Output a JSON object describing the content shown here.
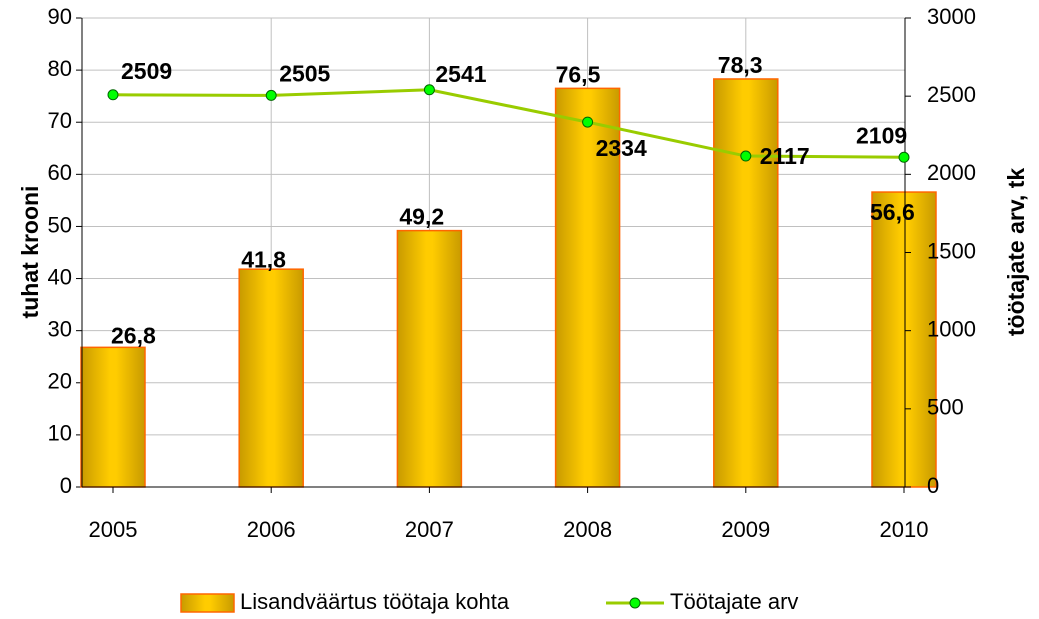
{
  "chart_data": {
    "type": "bar-line",
    "categories": [
      "2005",
      "2006",
      "2007",
      "2008",
      "2009",
      "2010"
    ],
    "y_label": "tuhat krooni",
    "y2_label": "töötajate arv, tk",
    "series": [
      {
        "name": "Lisandväärtus töötaja kohta",
        "type": "bar",
        "color": "#ffc000",
        "values": [
          26.8,
          41.8,
          49.2,
          76.5,
          78.3,
          56.6
        ],
        "value_labels": [
          "26,8",
          "41,8",
          "49,2",
          "76,5",
          "78,3",
          "56,6"
        ]
      },
      {
        "name": "Töötajate arv",
        "type": "line",
        "axis": "y2",
        "color": "#99cc00",
        "values": [
          2509,
          2505,
          2541,
          2334,
          2117,
          2109
        ]
      }
    ],
    "ylim": [
      0,
      90
    ],
    "yticks": [
      0,
      10,
      20,
      30,
      40,
      50,
      60,
      70,
      80,
      90
    ],
    "y2lim": [
      0,
      3000
    ],
    "y2ticks": [
      0,
      500,
      1000,
      1500,
      2000,
      2500,
      3000
    ],
    "grid": true
  }
}
